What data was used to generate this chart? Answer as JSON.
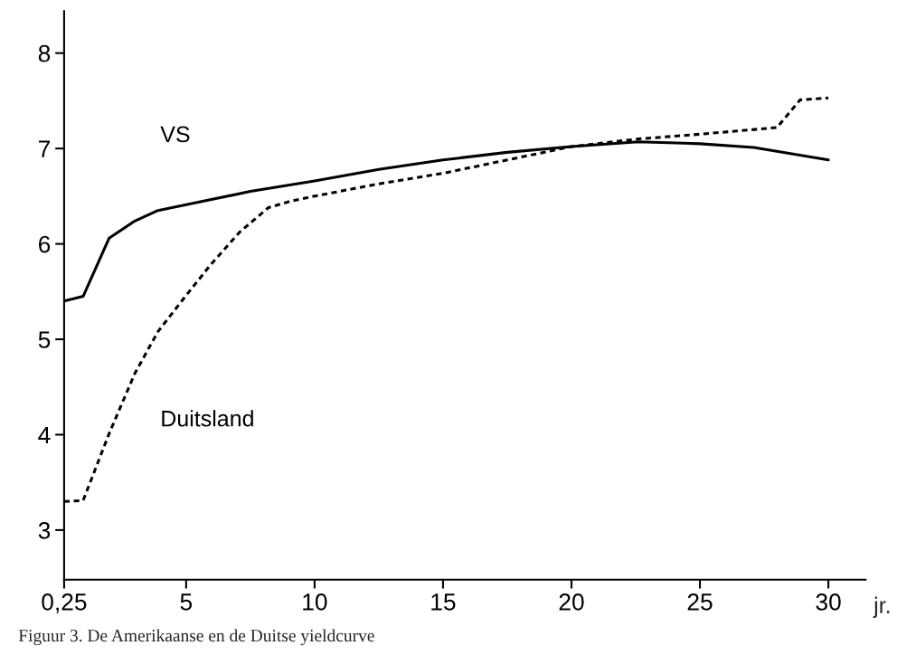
{
  "chart_data": {
    "type": "line",
    "xlabel": "jr.",
    "xlim": [
      0.25,
      31.45
    ],
    "ylim": [
      2.48,
      8.44
    ],
    "xticks": [
      {
        "value": 0.25,
        "label": "0,25"
      },
      5,
      10,
      15,
      20,
      25,
      30
    ],
    "yticks": [
      3,
      4,
      5,
      6,
      7,
      8
    ],
    "grid": false,
    "series": [
      {
        "name": "VS",
        "color": "#000000",
        "line_style": "solid",
        "x": [
          0.25,
          0.99,
          2.0,
          3.0,
          3.9,
          5,
          7.5,
          10,
          12.5,
          15,
          17.5,
          20,
          22.6,
          25,
          27.1,
          30
        ],
        "values": [
          5.4,
          5.45,
          6.06,
          6.24,
          6.35,
          6.41,
          6.55,
          6.66,
          6.78,
          6.88,
          6.96,
          7.02,
          7.07,
          7.05,
          7.01,
          6.88
        ]
      },
      {
        "name": "Duitsland",
        "color": "#000000",
        "line_style": "dotted",
        "x": [
          0.25,
          0.99,
          2.0,
          3.0,
          3.9,
          5,
          5.95,
          7.07,
          8.2,
          9.1,
          10,
          12.5,
          15,
          17.5,
          20,
          22.6,
          25,
          28,
          28.9,
          30
        ],
        "values": [
          3.3,
          3.31,
          4.01,
          4.64,
          5.08,
          5.46,
          5.78,
          6.12,
          6.38,
          6.45,
          6.5,
          6.63,
          6.74,
          6.88,
          7.02,
          7.1,
          7.15,
          7.22,
          7.51,
          7.53
        ]
      }
    ],
    "annotations": [
      "Figuur 3. De Amerikaanse en de Duitse yieldcurve"
    ]
  }
}
